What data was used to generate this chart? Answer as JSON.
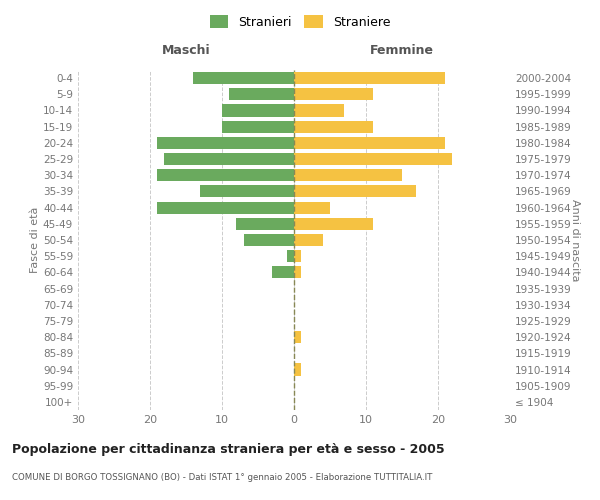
{
  "age_groups": [
    "100+",
    "95-99",
    "90-94",
    "85-89",
    "80-84",
    "75-79",
    "70-74",
    "65-69",
    "60-64",
    "55-59",
    "50-54",
    "45-49",
    "40-44",
    "35-39",
    "30-34",
    "25-29",
    "20-24",
    "15-19",
    "10-14",
    "5-9",
    "0-4"
  ],
  "birth_years": [
    "≤ 1904",
    "1905-1909",
    "1910-1914",
    "1915-1919",
    "1920-1924",
    "1925-1929",
    "1930-1934",
    "1935-1939",
    "1940-1944",
    "1945-1949",
    "1950-1954",
    "1955-1959",
    "1960-1964",
    "1965-1969",
    "1970-1974",
    "1975-1979",
    "1980-1984",
    "1985-1989",
    "1990-1994",
    "1995-1999",
    "2000-2004"
  ],
  "maschi": [
    0,
    0,
    0,
    0,
    0,
    0,
    0,
    0,
    3,
    1,
    7,
    8,
    19,
    13,
    19,
    18,
    19,
    10,
    10,
    9,
    14
  ],
  "femmine": [
    0,
    0,
    1,
    0,
    1,
    0,
    0,
    0,
    1,
    1,
    4,
    11,
    5,
    17,
    15,
    22,
    21,
    11,
    7,
    11,
    21
  ],
  "male_color": "#6aaa5e",
  "female_color": "#f5c242",
  "bg_color": "#ffffff",
  "grid_color": "#cccccc",
  "title": "Popolazione per cittadinanza straniera per età e sesso - 2005",
  "subtitle": "COMUNE DI BORGO TOSSIGNANO (BO) - Dati ISTAT 1° gennaio 2005 - Elaborazione TUTTITALIA.IT",
  "left_label": "Maschi",
  "right_label": "Femmine",
  "ylabel_left": "Fasce di età",
  "ylabel_right": "Anni di nascita",
  "legend_male": "Stranieri",
  "legend_female": "Straniere",
  "xlim": 30,
  "bar_height": 0.75
}
